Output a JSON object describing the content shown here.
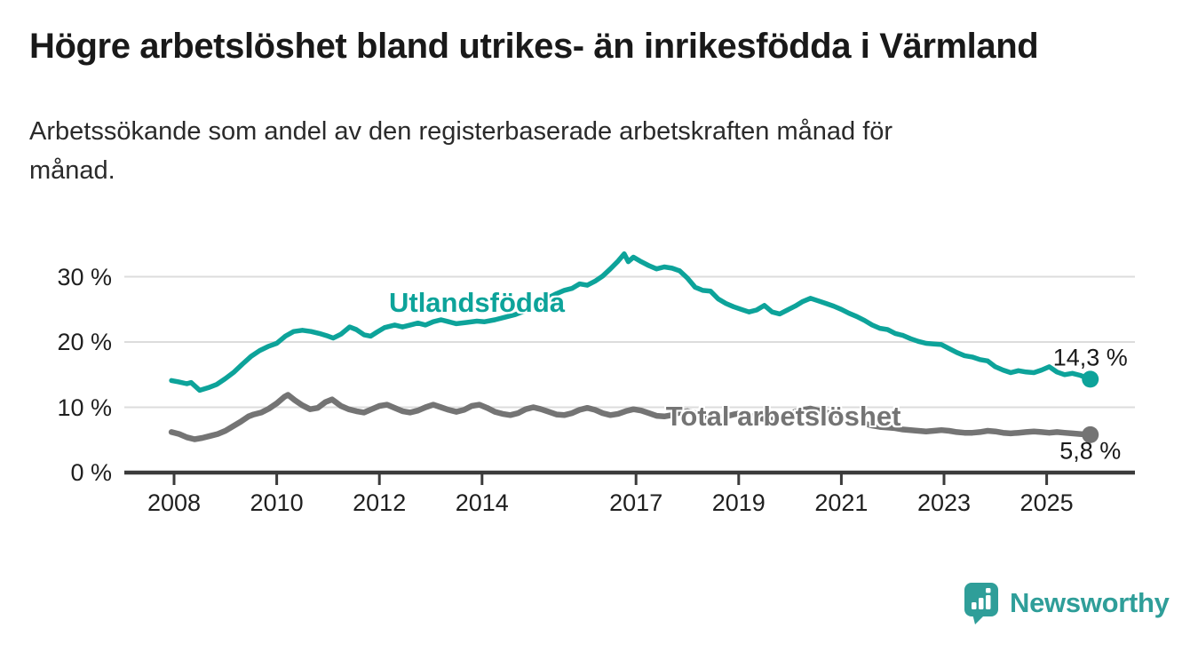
{
  "header": {
    "title": "Högre arbetslöshet bland utrikes- än inrikesfödda i Värmland",
    "subtitle_line1": "Arbetssökande som andel av den registerbaserade arbetskraften månad för",
    "subtitle_line2": "månad."
  },
  "chart_data": {
    "type": "line",
    "title": "Högre arbetslöshet bland utrikes- än inrikesfödda i Värmland",
    "subtitle": "Arbetssökande som andel av den registerbaserade arbetskraften månad för månad.",
    "grid": true,
    "legend": "inline-labels",
    "x_axis": {
      "ticks": [
        2008,
        2010,
        2012,
        2014,
        2017,
        2019,
        2021,
        2023,
        2025
      ],
      "tick_labels": [
        "2008",
        "2010",
        "2012",
        "2014",
        "2017",
        "2019",
        "2021",
        "2023",
        "2025"
      ],
      "range": [
        2007.6,
        2026.4
      ]
    },
    "y_axis": {
      "ticks": [
        0,
        10,
        20,
        30
      ],
      "tick_labels": [
        "0 %",
        "10 %",
        "20 %",
        "30 %"
      ],
      "range": [
        0,
        35
      ],
      "unit": "%"
    },
    "series": [
      {
        "id": "utlandsfodda",
        "name": "Utlandsfödda",
        "color": "#0da39a",
        "line_width": 5.5,
        "label": {
          "text": "Utlandsfödda",
          "x": 2013.9,
          "y": 26.0
        },
        "end_label": {
          "text": "14,3 %",
          "side": "above"
        },
        "end_value": 14.3,
        "points": [
          [
            2007.95,
            14.1
          ],
          [
            2008.08,
            13.9
          ],
          [
            2008.25,
            13.6
          ],
          [
            2008.33,
            13.8
          ],
          [
            2008.5,
            12.6
          ],
          [
            2008.67,
            13.0
          ],
          [
            2008.83,
            13.5
          ],
          [
            2009.0,
            14.4
          ],
          [
            2009.17,
            15.4
          ],
          [
            2009.33,
            16.6
          ],
          [
            2009.5,
            17.8
          ],
          [
            2009.67,
            18.7
          ],
          [
            2009.83,
            19.3
          ],
          [
            2010.0,
            19.8
          ],
          [
            2010.17,
            20.9
          ],
          [
            2010.33,
            21.6
          ],
          [
            2010.5,
            21.8
          ],
          [
            2010.67,
            21.6
          ],
          [
            2010.83,
            21.3
          ],
          [
            2011.0,
            20.9
          ],
          [
            2011.1,
            20.6
          ],
          [
            2011.25,
            21.2
          ],
          [
            2011.42,
            22.3
          ],
          [
            2011.55,
            21.9
          ],
          [
            2011.7,
            21.1
          ],
          [
            2011.83,
            20.9
          ],
          [
            2011.95,
            21.5
          ],
          [
            2012.1,
            22.2
          ],
          [
            2012.3,
            22.6
          ],
          [
            2012.45,
            22.3
          ],
          [
            2012.6,
            22.6
          ],
          [
            2012.75,
            22.9
          ],
          [
            2012.9,
            22.6
          ],
          [
            2013.05,
            23.1
          ],
          [
            2013.2,
            23.4
          ],
          [
            2013.35,
            23.1
          ],
          [
            2013.5,
            22.8
          ],
          [
            2013.7,
            23.0
          ],
          [
            2013.9,
            23.2
          ],
          [
            2014.05,
            23.1
          ],
          [
            2014.25,
            23.4
          ],
          [
            2014.45,
            23.8
          ],
          [
            2014.65,
            24.2
          ],
          [
            2014.85,
            24.8
          ],
          [
            2015.05,
            25.6
          ],
          [
            2015.25,
            26.6
          ],
          [
            2015.45,
            27.4
          ],
          [
            2015.6,
            27.9
          ],
          [
            2015.75,
            28.2
          ],
          [
            2015.9,
            28.9
          ],
          [
            2016.05,
            28.7
          ],
          [
            2016.2,
            29.3
          ],
          [
            2016.35,
            30.1
          ],
          [
            2016.5,
            31.2
          ],
          [
            2016.65,
            32.4
          ],
          [
            2016.77,
            33.5
          ],
          [
            2016.85,
            32.3
          ],
          [
            2016.95,
            33.0
          ],
          [
            2017.1,
            32.3
          ],
          [
            2017.25,
            31.7
          ],
          [
            2017.4,
            31.2
          ],
          [
            2017.55,
            31.5
          ],
          [
            2017.7,
            31.3
          ],
          [
            2017.85,
            30.9
          ],
          [
            2018.0,
            29.8
          ],
          [
            2018.15,
            28.4
          ],
          [
            2018.3,
            27.9
          ],
          [
            2018.45,
            27.8
          ],
          [
            2018.6,
            26.6
          ],
          [
            2018.75,
            25.9
          ],
          [
            2018.9,
            25.4
          ],
          [
            2019.05,
            25.0
          ],
          [
            2019.2,
            24.6
          ],
          [
            2019.35,
            24.9
          ],
          [
            2019.5,
            25.6
          ],
          [
            2019.65,
            24.6
          ],
          [
            2019.8,
            24.3
          ],
          [
            2019.95,
            24.9
          ],
          [
            2020.1,
            25.5
          ],
          [
            2020.25,
            26.2
          ],
          [
            2020.4,
            26.7
          ],
          [
            2020.55,
            26.3
          ],
          [
            2020.7,
            25.9
          ],
          [
            2020.85,
            25.5
          ],
          [
            2021.0,
            25.0
          ],
          [
            2021.15,
            24.4
          ],
          [
            2021.3,
            23.9
          ],
          [
            2021.45,
            23.3
          ],
          [
            2021.6,
            22.6
          ],
          [
            2021.75,
            22.1
          ],
          [
            2021.9,
            21.9
          ],
          [
            2022.05,
            21.3
          ],
          [
            2022.2,
            21.0
          ],
          [
            2022.35,
            20.5
          ],
          [
            2022.5,
            20.1
          ],
          [
            2022.65,
            19.8
          ],
          [
            2022.8,
            19.7
          ],
          [
            2022.95,
            19.6
          ],
          [
            2023.1,
            19.0
          ],
          [
            2023.25,
            18.4
          ],
          [
            2023.4,
            17.9
          ],
          [
            2023.55,
            17.7
          ],
          [
            2023.7,
            17.3
          ],
          [
            2023.85,
            17.1
          ],
          [
            2024.0,
            16.2
          ],
          [
            2024.15,
            15.7
          ],
          [
            2024.3,
            15.3
          ],
          [
            2024.45,
            15.6
          ],
          [
            2024.6,
            15.4
          ],
          [
            2024.75,
            15.3
          ],
          [
            2024.9,
            15.7
          ],
          [
            2025.05,
            16.2
          ],
          [
            2025.2,
            15.4
          ],
          [
            2025.35,
            15.0
          ],
          [
            2025.5,
            15.2
          ],
          [
            2025.65,
            14.9
          ],
          [
            2025.75,
            14.6
          ],
          [
            2025.85,
            14.3
          ]
        ]
      },
      {
        "id": "total",
        "name": "Total arbetslöshet",
        "color": "#747474",
        "line_width": 6.5,
        "label": {
          "text": "Total arbetslöshet",
          "x": 2019.87,
          "y": 8.6
        },
        "end_label": {
          "text": "5,8 %",
          "side": "below"
        },
        "end_value": 5.8,
        "points": [
          [
            2007.95,
            6.2
          ],
          [
            2008.1,
            5.9
          ],
          [
            2008.25,
            5.4
          ],
          [
            2008.4,
            5.1
          ],
          [
            2008.55,
            5.3
          ],
          [
            2008.7,
            5.6
          ],
          [
            2008.85,
            5.9
          ],
          [
            2009.0,
            6.4
          ],
          [
            2009.15,
            7.1
          ],
          [
            2009.3,
            7.8
          ],
          [
            2009.45,
            8.6
          ],
          [
            2009.55,
            8.9
          ],
          [
            2009.7,
            9.2
          ],
          [
            2009.85,
            9.8
          ],
          [
            2010.0,
            10.6
          ],
          [
            2010.15,
            11.6
          ],
          [
            2010.22,
            11.9
          ],
          [
            2010.35,
            11.1
          ],
          [
            2010.5,
            10.3
          ],
          [
            2010.65,
            9.7
          ],
          [
            2010.8,
            9.9
          ],
          [
            2010.95,
            10.8
          ],
          [
            2011.08,
            11.2
          ],
          [
            2011.25,
            10.2
          ],
          [
            2011.4,
            9.7
          ],
          [
            2011.55,
            9.4
          ],
          [
            2011.7,
            9.2
          ],
          [
            2011.85,
            9.7
          ],
          [
            2012.0,
            10.2
          ],
          [
            2012.15,
            10.4
          ],
          [
            2012.3,
            9.9
          ],
          [
            2012.45,
            9.4
          ],
          [
            2012.6,
            9.2
          ],
          [
            2012.75,
            9.5
          ],
          [
            2012.9,
            10.0
          ],
          [
            2013.05,
            10.4
          ],
          [
            2013.2,
            10.0
          ],
          [
            2013.35,
            9.6
          ],
          [
            2013.5,
            9.3
          ],
          [
            2013.65,
            9.6
          ],
          [
            2013.8,
            10.2
          ],
          [
            2013.95,
            10.4
          ],
          [
            2014.1,
            9.9
          ],
          [
            2014.25,
            9.3
          ],
          [
            2014.4,
            9.0
          ],
          [
            2014.55,
            8.8
          ],
          [
            2014.7,
            9.1
          ],
          [
            2014.85,
            9.7
          ],
          [
            2015.0,
            10.0
          ],
          [
            2015.15,
            9.7
          ],
          [
            2015.3,
            9.3
          ],
          [
            2015.45,
            8.9
          ],
          [
            2015.6,
            8.8
          ],
          [
            2015.75,
            9.1
          ],
          [
            2015.9,
            9.6
          ],
          [
            2016.05,
            9.9
          ],
          [
            2016.2,
            9.6
          ],
          [
            2016.35,
            9.1
          ],
          [
            2016.5,
            8.8
          ],
          [
            2016.65,
            9.0
          ],
          [
            2016.8,
            9.4
          ],
          [
            2016.95,
            9.7
          ],
          [
            2017.1,
            9.5
          ],
          [
            2017.25,
            9.1
          ],
          [
            2017.4,
            8.7
          ],
          [
            2017.55,
            8.6
          ],
          [
            2017.7,
            8.8
          ],
          [
            2017.85,
            9.2
          ],
          [
            2018.0,
            9.4
          ],
          [
            2018.15,
            9.1
          ],
          [
            2018.3,
            8.7
          ],
          [
            2018.45,
            8.4
          ],
          [
            2018.6,
            8.3
          ],
          [
            2018.75,
            8.6
          ],
          [
            2018.9,
            8.9
          ],
          [
            2019.05,
            9.1
          ],
          [
            2019.2,
            8.8
          ],
          [
            2019.35,
            8.4
          ],
          [
            2019.5,
            8.2
          ],
          [
            2019.65,
            8.4
          ],
          [
            2019.8,
            8.7
          ],
          [
            2019.95,
            9.0
          ],
          [
            2020.1,
            9.3
          ],
          [
            2020.25,
            9.6
          ],
          [
            2020.4,
            9.8
          ],
          [
            2020.55,
            9.5
          ],
          [
            2020.7,
            9.2
          ],
          [
            2020.85,
            8.9
          ],
          [
            2021.0,
            8.7
          ],
          [
            2021.15,
            8.3
          ],
          [
            2021.3,
            7.9
          ],
          [
            2021.45,
            7.5
          ],
          [
            2021.6,
            7.2
          ],
          [
            2021.75,
            7.0
          ],
          [
            2021.9,
            6.9
          ],
          [
            2022.05,
            6.8
          ],
          [
            2022.2,
            6.6
          ],
          [
            2022.35,
            6.5
          ],
          [
            2022.5,
            6.4
          ],
          [
            2022.65,
            6.3
          ],
          [
            2022.8,
            6.4
          ],
          [
            2022.95,
            6.5
          ],
          [
            2023.1,
            6.4
          ],
          [
            2023.25,
            6.2
          ],
          [
            2023.4,
            6.1
          ],
          [
            2023.55,
            6.1
          ],
          [
            2023.7,
            6.2
          ],
          [
            2023.85,
            6.4
          ],
          [
            2024.0,
            6.3
          ],
          [
            2024.15,
            6.1
          ],
          [
            2024.3,
            6.0
          ],
          [
            2024.45,
            6.1
          ],
          [
            2024.6,
            6.2
          ],
          [
            2024.75,
            6.3
          ],
          [
            2024.9,
            6.2
          ],
          [
            2025.05,
            6.1
          ],
          [
            2025.2,
            6.2
          ],
          [
            2025.35,
            6.1
          ],
          [
            2025.5,
            6.0
          ],
          [
            2025.65,
            5.9
          ],
          [
            2025.85,
            5.8
          ]
        ]
      }
    ]
  },
  "attribution": {
    "brand": "Newsworthy",
    "brand_color": "#2f9e99"
  }
}
